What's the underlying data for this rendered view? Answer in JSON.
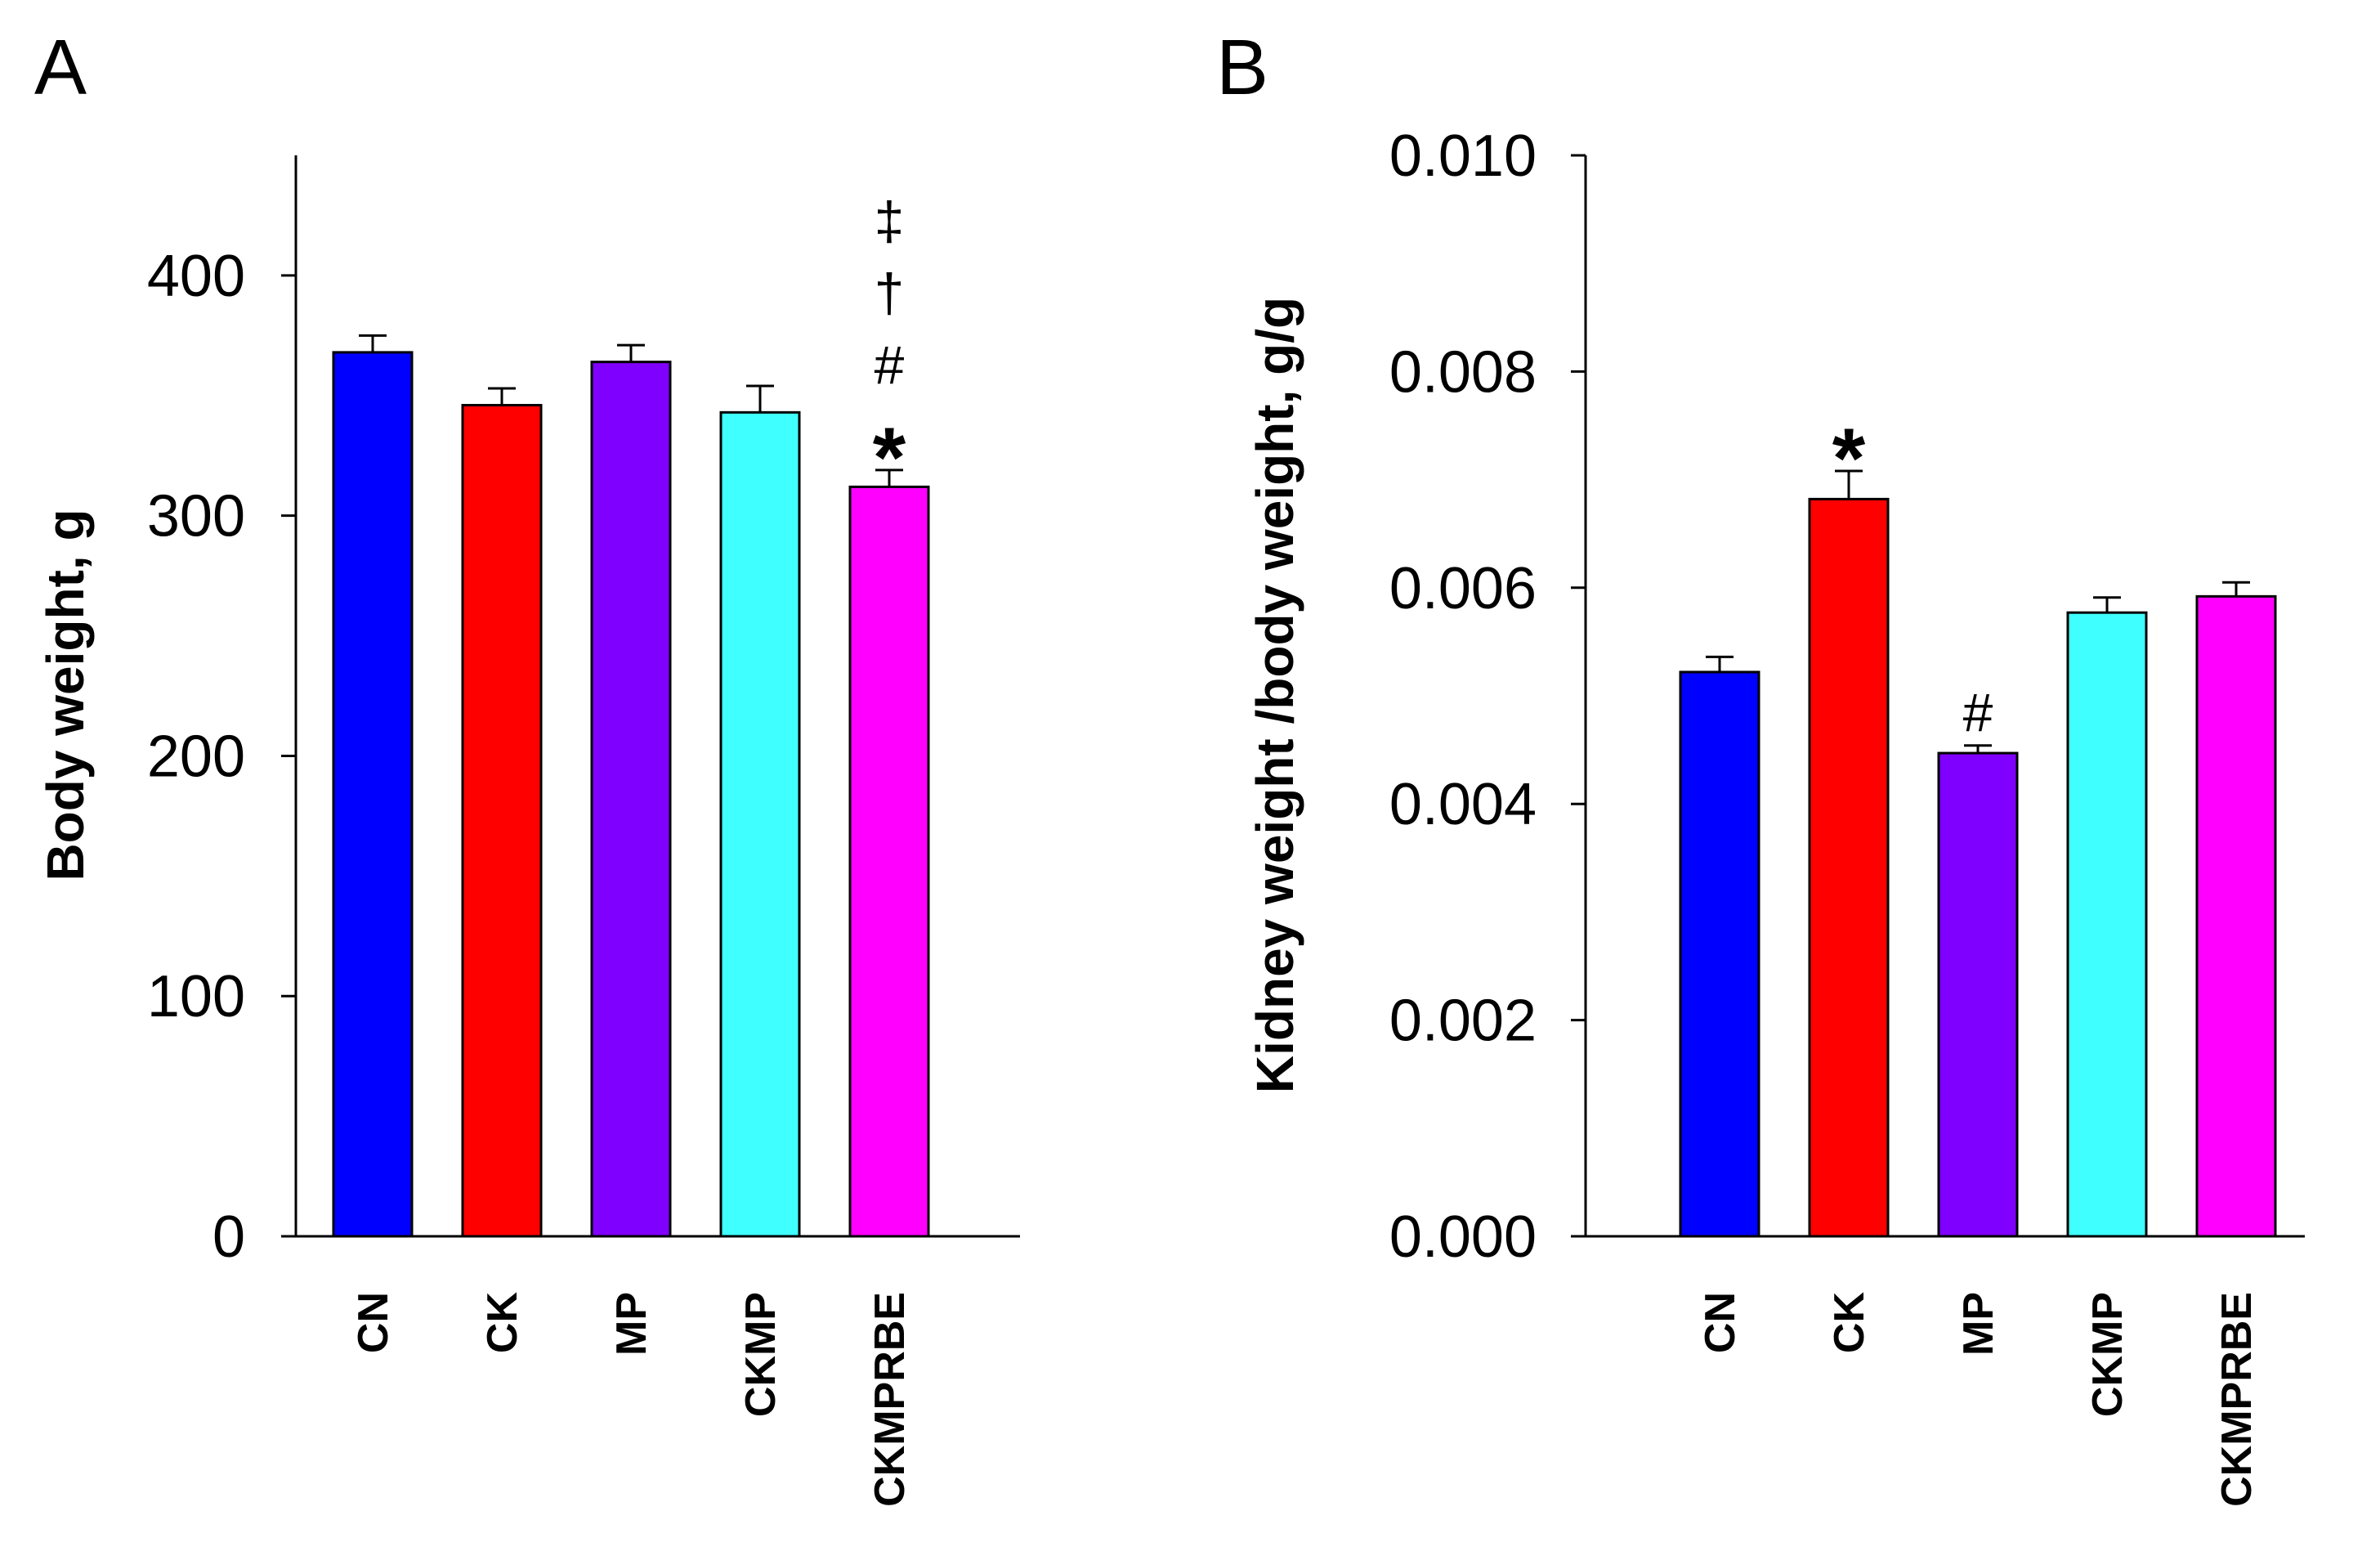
{
  "chart_data": [
    {
      "panel": "A",
      "type": "bar",
      "title": "",
      "xlabel": "",
      "ylabel": "Body weight, g",
      "ylim": [
        0,
        450
      ],
      "yticks": [
        0,
        100,
        200,
        300,
        400
      ],
      "ytick_labels": [
        "0",
        "100",
        "200",
        "300",
        "400"
      ],
      "categories": [
        "CN",
        "CK",
        "MP",
        "CKMP",
        "CKMPRBE"
      ],
      "values": [
        368,
        346,
        364,
        343,
        312
      ],
      "errors": [
        7,
        7,
        7,
        11,
        7
      ],
      "colors": [
        "#0000ff",
        "#ff0000",
        "#8000ff",
        "#40ffff",
        "#ff00ff"
      ],
      "annotations": [
        {
          "category": "CKMPRBE",
          "symbols": [
            "‡",
            "†",
            "#",
            "*"
          ]
        }
      ]
    },
    {
      "panel": "B",
      "type": "bar",
      "title": "",
      "xlabel": "",
      "ylabel": "Kidney weight /body weight, g/g",
      "ylim": [
        0,
        0.01
      ],
      "yticks": [
        0,
        0.002,
        0.004,
        0.006,
        0.008,
        0.01
      ],
      "ytick_labels": [
        "0.000",
        "0.002",
        "0.004",
        "0.006",
        "0.008",
        "0.010"
      ],
      "categories": [
        "CN",
        "CK",
        "MP",
        "CKMP",
        "CKMPRBE"
      ],
      "values": [
        0.00522,
        0.00682,
        0.00447,
        0.00577,
        0.00592
      ],
      "errors": [
        0.00014,
        0.00026,
        7e-05,
        0.00014,
        0.00013
      ],
      "colors": [
        "#0000ff",
        "#ff0000",
        "#8000ff",
        "#40ffff",
        "#ff00ff"
      ],
      "annotations": [
        {
          "category": "CK",
          "symbols": [
            "*"
          ]
        },
        {
          "category": "MP",
          "symbols": [
            "#"
          ]
        }
      ]
    }
  ]
}
